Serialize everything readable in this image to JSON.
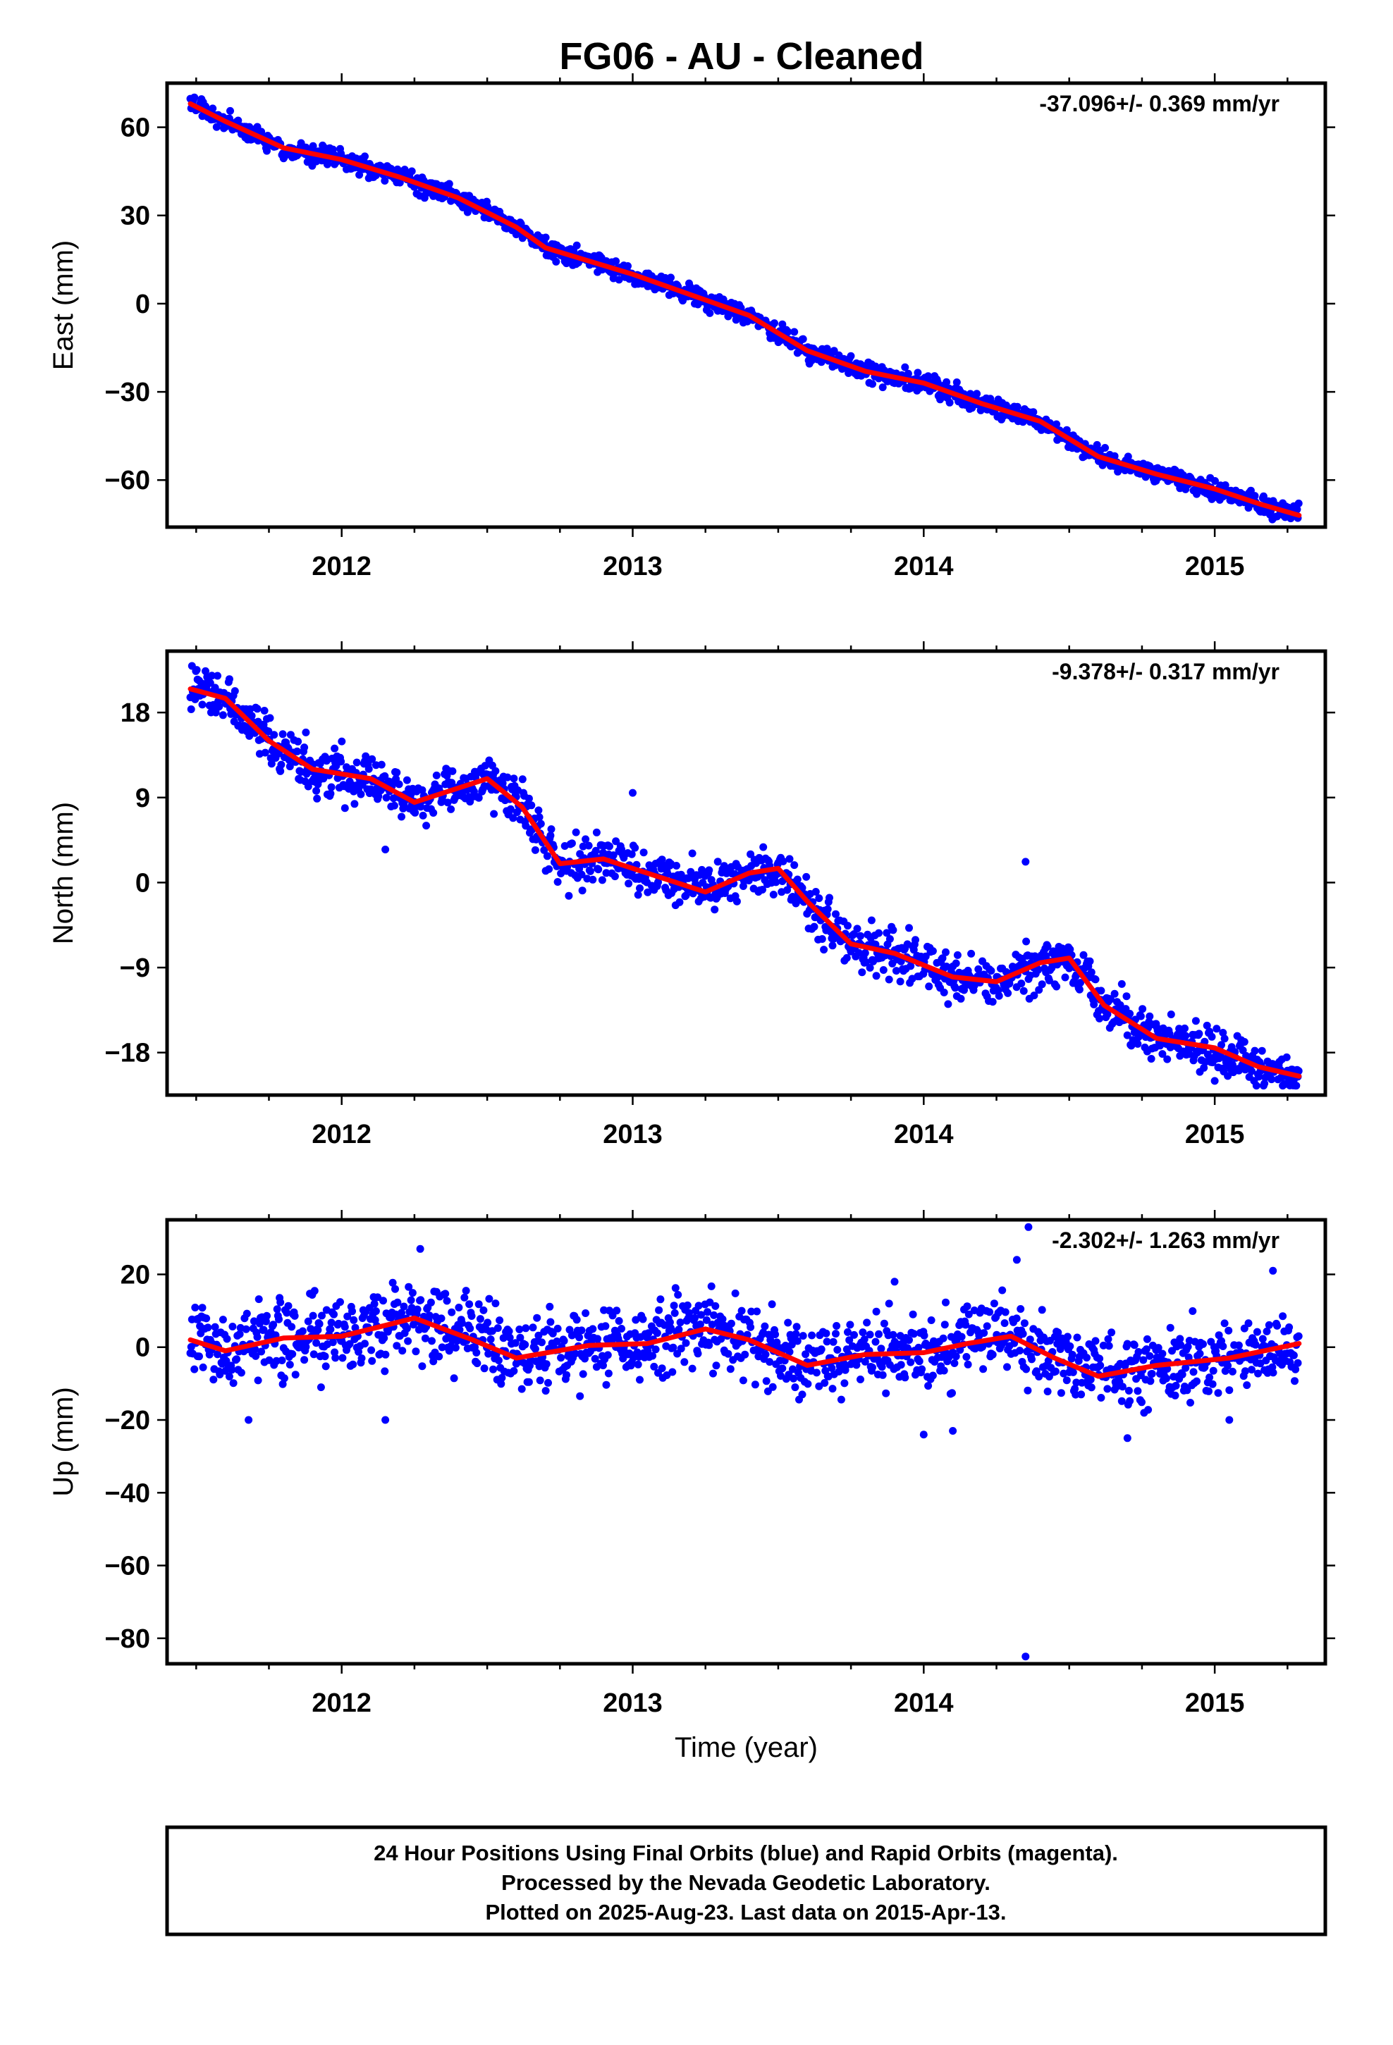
{
  "title": "FG06  - AU - Cleaned",
  "colors": {
    "final_orbits": "#0000ff",
    "model_fit": "#ff0000",
    "frame": "#000000"
  },
  "footer": {
    "line1": "24 Hour Positions Using Final Orbits (blue) and Rapid Orbits (magenta).",
    "line2": "Processed by the Nevada Geodetic Laboratory.",
    "line3": "Plotted on 2025-Aug-23. Last data on 2015-Apr-13."
  },
  "chart_data": [
    {
      "type": "scatter",
      "id": "east",
      "ylabel": "East (mm)",
      "xlabel": "",
      "rate_label": "-37.096+/- 0.369 mm/yr",
      "xlim": [
        2011.4,
        2015.38
      ],
      "ylim": [
        -76,
        75
      ],
      "x_ticks": [
        "2012",
        "2013",
        "2014",
        "2015"
      ],
      "y_ticks": [
        "60",
        "30",
        "0",
        "−30",
        "−60"
      ],
      "y_tick_values": [
        60,
        30,
        0,
        -30,
        -60
      ],
      "trend": {
        "x": [
          2011.48,
          2011.6,
          2011.8,
          2012.0,
          2012.2,
          2012.4,
          2012.6,
          2012.7,
          2012.8,
          2013.0,
          2013.2,
          2013.4,
          2013.6,
          2013.8,
          2014.0,
          2014.2,
          2014.4,
          2014.6,
          2014.8,
          2015.0,
          2015.15,
          2015.29
        ],
        "y": [
          68,
          62,
          53,
          49,
          43,
          36,
          26,
          19,
          16,
          10,
          3,
          -4,
          -16,
          -23,
          -27,
          -34,
          -40,
          -52,
          -58,
          -63,
          -68,
          -72
        ]
      },
      "noise_sd": 1.6,
      "outliers": []
    },
    {
      "type": "scatter",
      "id": "north",
      "ylabel": "North (mm)",
      "xlabel": "",
      "rate_label": "-9.378+/- 0.317 mm/yr",
      "xlim": [
        2011.4,
        2015.38
      ],
      "ylim": [
        -22.5,
        24.5
      ],
      "x_ticks": [
        "2012",
        "2013",
        "2014",
        "2015"
      ],
      "y_ticks": [
        "18",
        "9",
        "0",
        "−9",
        "−18"
      ],
      "y_tick_values": [
        18,
        9,
        0,
        -9,
        -18
      ],
      "trend": {
        "x": [
          2011.48,
          2011.6,
          2011.75,
          2011.9,
          2012.1,
          2012.25,
          2012.4,
          2012.5,
          2012.62,
          2012.75,
          2012.9,
          2013.05,
          2013.25,
          2013.4,
          2013.5,
          2013.6,
          2013.75,
          2013.9,
          2014.1,
          2014.25,
          2014.4,
          2014.5,
          2014.62,
          2014.8,
          2015.0,
          2015.15,
          2015.29
        ],
        "y": [
          20.5,
          19.5,
          15,
          12,
          11,
          8.5,
          10,
          11,
          8,
          2,
          2.5,
          1,
          -1,
          1,
          1.5,
          -2,
          -6.5,
          -7.5,
          -10,
          -10.5,
          -8.5,
          -8,
          -13,
          -16.5,
          -17.5,
          -19.5,
          -20.5
        ]
      },
      "noise_sd": 1.2,
      "outliers": [
        [
          2012.15,
          3.5
        ],
        [
          2013.0,
          9.5
        ],
        [
          2014.35,
          2.2
        ],
        [
          2014.42,
          -9.5
        ],
        [
          2015.0,
          -21
        ]
      ]
    },
    {
      "type": "scatter",
      "id": "up",
      "ylabel": "Up (mm)",
      "xlabel": "Time (year)",
      "rate_label": "-2.302+/- 1.263 mm/yr",
      "xlim": [
        2011.4,
        2015.38
      ],
      "ylim": [
        -87,
        35
      ],
      "x_ticks": [
        "2012",
        "2013",
        "2014",
        "2015"
      ],
      "y_ticks": [
        "20",
        "0",
        "−20",
        "−40",
        "−60",
        "−80"
      ],
      "y_tick_values": [
        20,
        0,
        -20,
        -40,
        -60,
        -80
      ],
      "trend": {
        "x": [
          2011.48,
          2011.6,
          2011.8,
          2012.0,
          2012.15,
          2012.25,
          2012.45,
          2012.6,
          2012.85,
          2013.05,
          2013.25,
          2013.4,
          2013.6,
          2013.8,
          2014.0,
          2014.15,
          2014.3,
          2014.45,
          2014.6,
          2014.8,
          2015.05,
          2015.29
        ],
        "y": [
          2,
          -1,
          2.5,
          3,
          6,
          8,
          2,
          -3,
          0.5,
          1,
          5,
          2,
          -5,
          -2,
          -1.5,
          1,
          3,
          -3,
          -8,
          -5,
          -3,
          1
        ]
      },
      "noise_sd": 5.0,
      "outliers": [
        [
          2012.15,
          -20
        ],
        [
          2012.27,
          27
        ],
        [
          2011.68,
          -20
        ],
        [
          2014.0,
          -24
        ],
        [
          2014.1,
          -23
        ],
        [
          2014.35,
          -85
        ],
        [
          2014.36,
          33
        ],
        [
          2014.32,
          24
        ],
        [
          2014.7,
          -25
        ],
        [
          2015.05,
          -20
        ],
        [
          2013.9,
          18
        ],
        [
          2015.2,
          21
        ]
      ]
    }
  ]
}
